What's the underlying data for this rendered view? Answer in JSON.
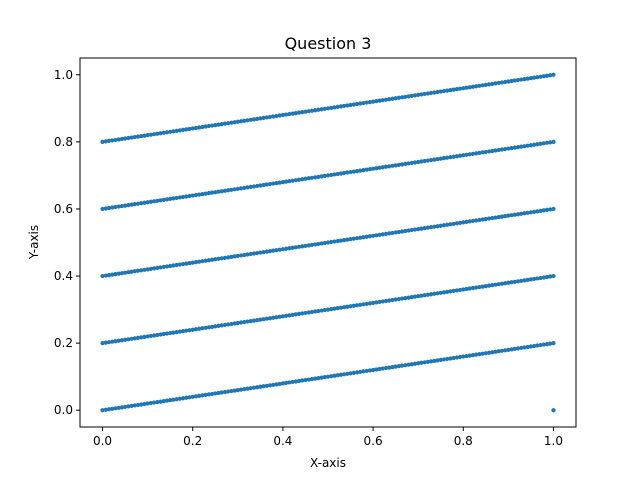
{
  "chart_data": {
    "type": "scatter",
    "title": "Question 3",
    "xlabel": "X-axis",
    "ylabel": "Y-axis",
    "xlim": [
      -0.05,
      1.05
    ],
    "ylim": [
      -0.05,
      1.05
    ],
    "xticks": [
      0.0,
      0.2,
      0.4,
      0.6,
      0.8,
      1.0
    ],
    "yticks": [
      0.0,
      0.2,
      0.4,
      0.6,
      0.8,
      1.0
    ],
    "xtick_labels": [
      "0.0",
      "0.2",
      "0.4",
      "0.6",
      "0.8",
      "1.0"
    ],
    "ytick_labels": [
      "0.0",
      "0.2",
      "0.4",
      "0.6",
      "0.8",
      "1.0"
    ],
    "grid": false,
    "color": "#1f77b4",
    "series": [
      {
        "x_range": [
          0.0,
          1.0
        ],
        "y_start": 0.0,
        "y_end": 0.2
      },
      {
        "x_range": [
          0.0,
          1.0
        ],
        "y_start": 0.2,
        "y_end": 0.4
      },
      {
        "x_range": [
          0.0,
          1.0
        ],
        "y_start": 0.4,
        "y_end": 0.6
      },
      {
        "x_range": [
          0.0,
          1.0
        ],
        "y_start": 0.6,
        "y_end": 0.8
      },
      {
        "x_range": [
          0.0,
          1.0
        ],
        "y_start": 0.8,
        "y_end": 1.0
      }
    ],
    "extra_points": [
      {
        "x": 1.0,
        "y": 0.0
      }
    ]
  }
}
